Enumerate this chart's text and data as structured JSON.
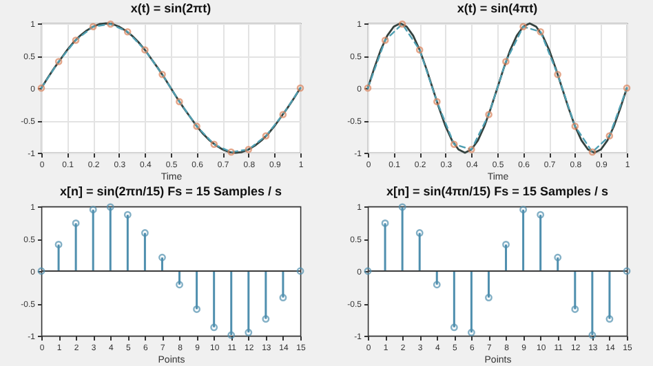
{
  "chart_data": [
    {
      "type": "line",
      "title": "x(t) = sin(2πt)",
      "xlabel": "Time",
      "xlim": [
        0,
        1
      ],
      "ylim": [
        -1,
        1
      ],
      "xticks": [
        0,
        0.1,
        0.2,
        0.3,
        0.4,
        0.5,
        0.6,
        0.7,
        0.8,
        0.9,
        1
      ],
      "yticks": [
        -1,
        -0.5,
        0,
        0.5,
        1
      ],
      "grid": true,
      "series": [
        {
          "type": "line",
          "color": "#34423f",
          "line_style": "solid",
          "x": [
            0,
            0.025,
            0.05,
            0.075,
            0.1,
            0.125,
            0.15,
            0.175,
            0.2,
            0.225,
            0.25,
            0.275,
            0.3,
            0.325,
            0.35,
            0.375,
            0.4,
            0.425,
            0.45,
            0.475,
            0.5,
            0.525,
            0.55,
            0.575,
            0.6,
            0.625,
            0.65,
            0.675,
            0.7,
            0.725,
            0.75,
            0.775,
            0.8,
            0.825,
            0.85,
            0.875,
            0.9,
            0.925,
            0.95,
            0.975,
            1
          ],
          "values": [
            0,
            0.16,
            0.31,
            0.45,
            0.59,
            0.71,
            0.81,
            0.89,
            0.95,
            0.99,
            1,
            0.99,
            0.95,
            0.89,
            0.81,
            0.71,
            0.59,
            0.45,
            0.31,
            0.16,
            0,
            -0.16,
            -0.31,
            -0.45,
            -0.59,
            -0.71,
            -0.81,
            -0.89,
            -0.95,
            -0.99,
            -1,
            -0.99,
            -0.95,
            -0.89,
            -0.81,
            -0.71,
            -0.59,
            -0.45,
            -0.31,
            -0.16,
            0
          ]
        },
        {
          "type": "line",
          "color": "#4f9fb2",
          "line_style": "dashed",
          "x": [
            0,
            0.067,
            0.133,
            0.2,
            0.267,
            0.333,
            0.4,
            0.467,
            0.533,
            0.6,
            0.667,
            0.733,
            0.8,
            0.867,
            0.933,
            1
          ],
          "values": [
            0,
            0.41,
            0.74,
            0.95,
            0.99,
            0.87,
            0.59,
            0.21,
            -0.21,
            -0.59,
            -0.87,
            -0.99,
            -0.95,
            -0.74,
            -0.41,
            0
          ]
        },
        {
          "type": "scatter",
          "color": "#d9825b",
          "marker": "circle",
          "x": [
            0,
            0.067,
            0.133,
            0.2,
            0.267,
            0.333,
            0.4,
            0.467,
            0.533,
            0.6,
            0.667,
            0.733,
            0.8,
            0.867,
            0.933,
            1
          ],
          "values": [
            0,
            0.41,
            0.74,
            0.95,
            0.99,
            0.87,
            0.59,
            0.21,
            -0.21,
            -0.59,
            -0.87,
            -0.99,
            -0.95,
            -0.74,
            -0.41,
            0
          ]
        }
      ]
    },
    {
      "type": "line",
      "title": "x(t) = sin(4πt)",
      "xlabel": "Time",
      "xlim": [
        0,
        1
      ],
      "ylim": [
        -1,
        1
      ],
      "xticks": [
        0,
        0.1,
        0.2,
        0.3,
        0.4,
        0.5,
        0.6,
        0.7,
        0.8,
        0.9,
        1
      ],
      "yticks": [
        -1,
        -0.5,
        0,
        0.5,
        1
      ],
      "grid": true,
      "series": [
        {
          "type": "line",
          "color": "#34423f",
          "line_style": "solid",
          "x": [
            0,
            0.025,
            0.05,
            0.075,
            0.1,
            0.125,
            0.15,
            0.175,
            0.2,
            0.225,
            0.25,
            0.275,
            0.3,
            0.325,
            0.35,
            0.375,
            0.4,
            0.425,
            0.45,
            0.475,
            0.5,
            0.525,
            0.55,
            0.575,
            0.6,
            0.625,
            0.65,
            0.675,
            0.7,
            0.725,
            0.75,
            0.775,
            0.8,
            0.825,
            0.85,
            0.875,
            0.9,
            0.925,
            0.95,
            0.975,
            1
          ],
          "values": [
            0,
            0.31,
            0.59,
            0.81,
            0.95,
            1,
            0.95,
            0.81,
            0.59,
            0.31,
            0,
            -0.31,
            -0.59,
            -0.81,
            -0.95,
            -1,
            -0.95,
            -0.81,
            -0.59,
            -0.31,
            0,
            0.31,
            0.59,
            0.81,
            0.95,
            1,
            0.95,
            0.81,
            0.59,
            0.31,
            0,
            -0.31,
            -0.59,
            -0.81,
            -0.95,
            -1,
            -0.95,
            -0.81,
            -0.59,
            -0.31,
            0
          ]
        },
        {
          "type": "line",
          "color": "#4f9fb2",
          "line_style": "dashed",
          "x": [
            0,
            0.067,
            0.133,
            0.2,
            0.267,
            0.333,
            0.4,
            0.467,
            0.533,
            0.6,
            0.667,
            0.733,
            0.8,
            0.867,
            0.933,
            1
          ],
          "values": [
            0,
            0.74,
            0.99,
            0.59,
            -0.21,
            -0.87,
            -0.95,
            -0.41,
            0.41,
            0.95,
            0.87,
            0.21,
            -0.59,
            -0.99,
            -0.74,
            0
          ]
        },
        {
          "type": "scatter",
          "color": "#d9825b",
          "marker": "circle",
          "x": [
            0,
            0.067,
            0.133,
            0.2,
            0.267,
            0.333,
            0.4,
            0.467,
            0.533,
            0.6,
            0.667,
            0.733,
            0.8,
            0.867,
            0.933,
            1
          ],
          "values": [
            0,
            0.74,
            0.99,
            0.59,
            -0.21,
            -0.87,
            -0.95,
            -0.41,
            0.41,
            0.95,
            0.87,
            0.21,
            -0.59,
            -0.99,
            -0.74,
            0
          ]
        }
      ]
    },
    {
      "type": "lollipop",
      "title": "x[n] = sin(2πn/15)       Fs = 15 Samples / s",
      "xlabel": "Points",
      "xlim": [
        0,
        15
      ],
      "ylim": [
        -1,
        1
      ],
      "xticks": [
        0,
        1,
        2,
        3,
        4,
        5,
        6,
        7,
        8,
        9,
        10,
        11,
        12,
        13,
        14,
        15
      ],
      "yticks": [
        -1,
        -0.5,
        0,
        0.5,
        1
      ],
      "marker": "circle",
      "ref_lines": [
        {
          "axis": "y",
          "value": 0,
          "color": "#3a3a3a"
        }
      ],
      "x": [
        0,
        1,
        2,
        3,
        4,
        5,
        6,
        7,
        8,
        9,
        10,
        11,
        12,
        13,
        14,
        15
      ],
      "series": [
        {
          "color": "#4f8fae",
          "values": [
            0,
            0.41,
            0.74,
            0.95,
            0.99,
            0.87,
            0.59,
            0.21,
            -0.21,
            -0.59,
            -0.87,
            -0.99,
            -0.95,
            -0.74,
            -0.41,
            0
          ]
        }
      ]
    },
    {
      "type": "lollipop",
      "title": "x[n] = sin(4πn/15)       Fs = 15 Samples / s",
      "xlabel": "Points",
      "xlim": [
        0,
        15
      ],
      "ylim": [
        -1,
        1
      ],
      "xticks": [
        0,
        1,
        2,
        3,
        4,
        5,
        6,
        7,
        8,
        9,
        10,
        11,
        12,
        13,
        14,
        15
      ],
      "yticks": [
        -1,
        -0.5,
        0,
        0.5,
        1
      ],
      "marker": "circle",
      "ref_lines": [
        {
          "axis": "y",
          "value": 0,
          "color": "#3a3a3a"
        }
      ],
      "x": [
        0,
        1,
        2,
        3,
        4,
        5,
        6,
        7,
        8,
        9,
        10,
        11,
        12,
        13,
        14,
        15
      ],
      "series": [
        {
          "color": "#4f8fae",
          "values": [
            0,
            0.74,
            0.99,
            0.59,
            -0.21,
            -0.87,
            -0.95,
            -0.41,
            0.41,
            0.95,
            0.87,
            0.21,
            -0.59,
            -0.99,
            -0.74,
            0
          ]
        }
      ]
    }
  ]
}
